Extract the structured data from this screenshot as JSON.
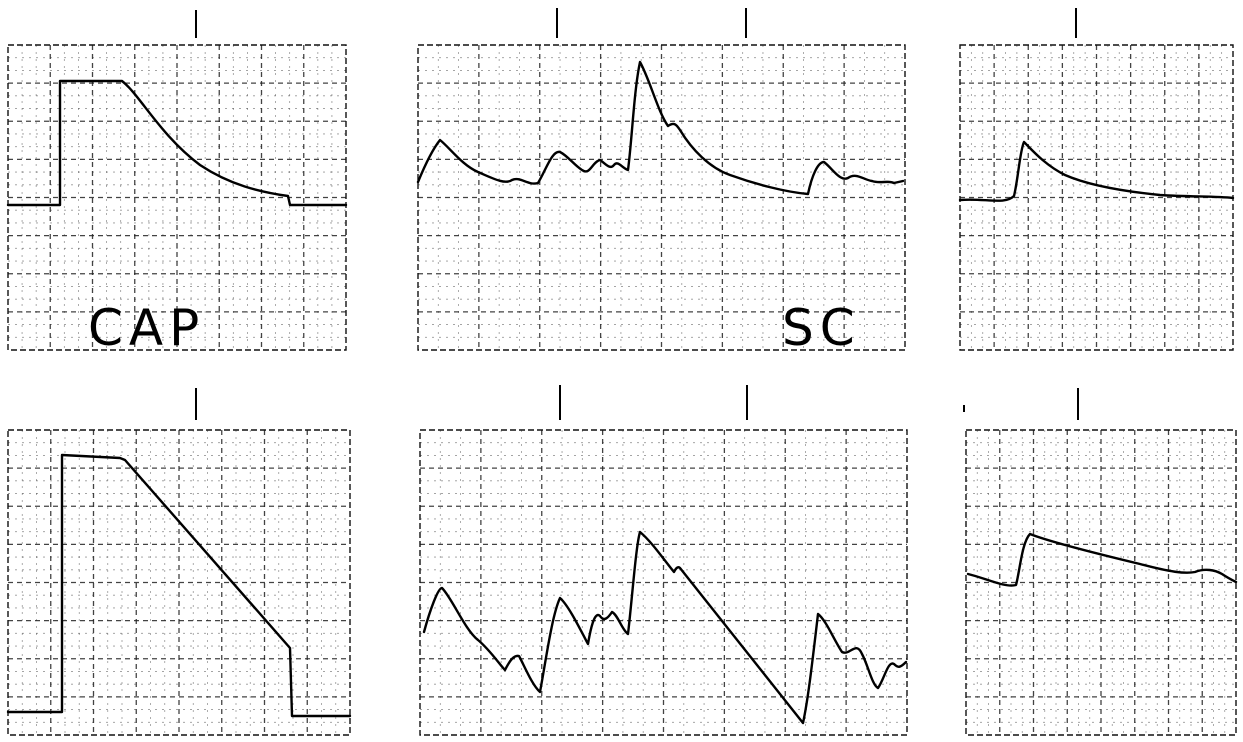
{
  "figure": {
    "labels": {
      "cap": "CAP",
      "sc": "SC"
    }
  },
  "panels": [
    {
      "id": "top-left",
      "label": "CAP"
    },
    {
      "id": "top-middle",
      "label": "SC"
    },
    {
      "id": "top-right"
    },
    {
      "id": "bottom-left"
    },
    {
      "id": "bottom-middle"
    },
    {
      "id": "bottom-right"
    }
  ]
}
